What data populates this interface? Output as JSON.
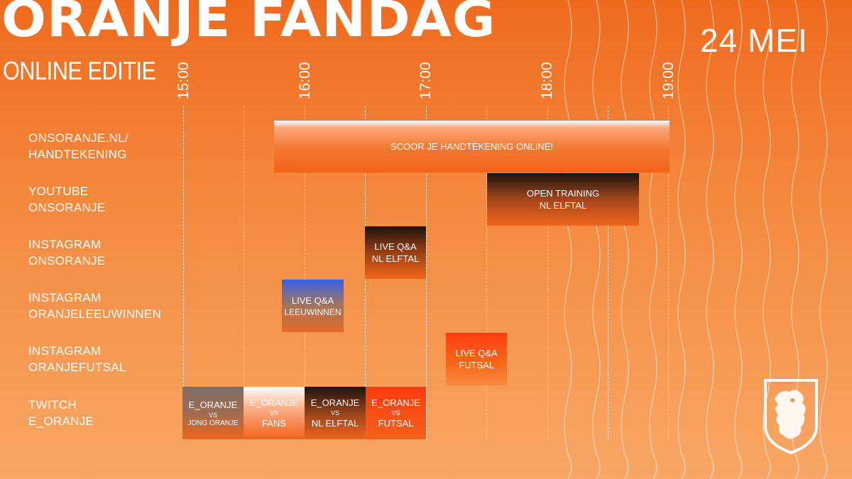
{
  "header": {
    "title": "ORANJE FANDAG",
    "subtitle": "ONLINE EDITIE",
    "date": "24 MEI"
  },
  "timeline": {
    "hours": [
      "15:00",
      "16:00",
      "17:00",
      "18:00",
      "19:00"
    ]
  },
  "rows": [
    {
      "line1": "ONSORANJE.NL/",
      "line2": "HANDTEKENING"
    },
    {
      "line1": "YOUTUBE",
      "line2": "ONSORANJE"
    },
    {
      "line1": "INSTAGRAM",
      "line2": "ONSORANJE"
    },
    {
      "line1": "INSTAGRAM",
      "line2": "ORANJELEEUWINNEN"
    },
    {
      "line1": "INSTAGRAM",
      "line2": "ORANJEFUTSAL"
    },
    {
      "line1": "TWITCH",
      "line2": "E_ORANJE"
    }
  ],
  "events": {
    "autograph": {
      "label": "SCOOR JE HANDTEKENING ONLINE!"
    },
    "training": {
      "line1": "OPEN TRAINING",
      "line2": "NL ELFTAL"
    },
    "qa_nl": {
      "line1": "LIVE Q&A",
      "line2": "NL ELFTAL"
    },
    "qa_leeuwinnen": {
      "line1": "LIVE Q&A",
      "line2": "LEEUWINNEN"
    },
    "qa_futsal": {
      "line1": "LIVE Q&A",
      "line2": "FUTSAL"
    },
    "twitch": [
      {
        "team": "E_ORANJE",
        "vs": "VS",
        "opponent": "JONG ORANJE"
      },
      {
        "team": "E_ORANJE",
        "vs": "VS",
        "opponent": "FANS"
      },
      {
        "team": "E_ORANJE",
        "vs": "VS",
        "opponent": "NL ELFTAL"
      },
      {
        "team": "E_ORANJE",
        "vs": "VS",
        "opponent": "FUTSAL"
      }
    ]
  },
  "colors": {
    "background": "#f06a1e",
    "text": "#ffffff",
    "dark": "#1d130e",
    "blue": "#3a5fe6",
    "red": "#ff3b0f"
  }
}
